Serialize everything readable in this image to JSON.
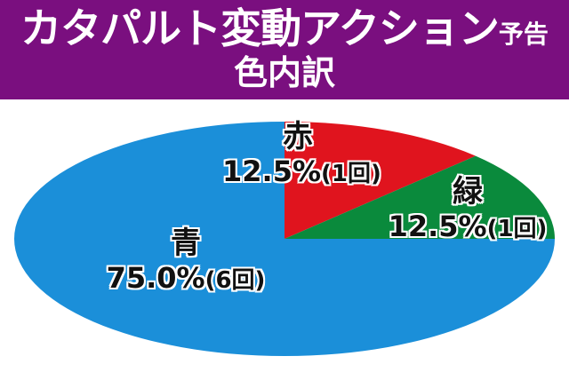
{
  "header": {
    "title_main": "カタパルト変動アクション",
    "title_suffix": "予告",
    "subtitle": "色内訳"
  },
  "chart_data": {
    "type": "pie",
    "slices": [
      {
        "label": "赤",
        "value": 12.5,
        "percent_text": "12.5%",
        "count_text": "(1回)",
        "color": "#e0141e"
      },
      {
        "label": "緑",
        "value": 12.5,
        "percent_text": "12.5%",
        "count_text": "(1回)",
        "color": "#0a8a3c"
      },
      {
        "label": "青",
        "value": 75.0,
        "percent_text": "75.0%",
        "count_text": "(6回)",
        "color": "#1b8fd9"
      }
    ]
  }
}
